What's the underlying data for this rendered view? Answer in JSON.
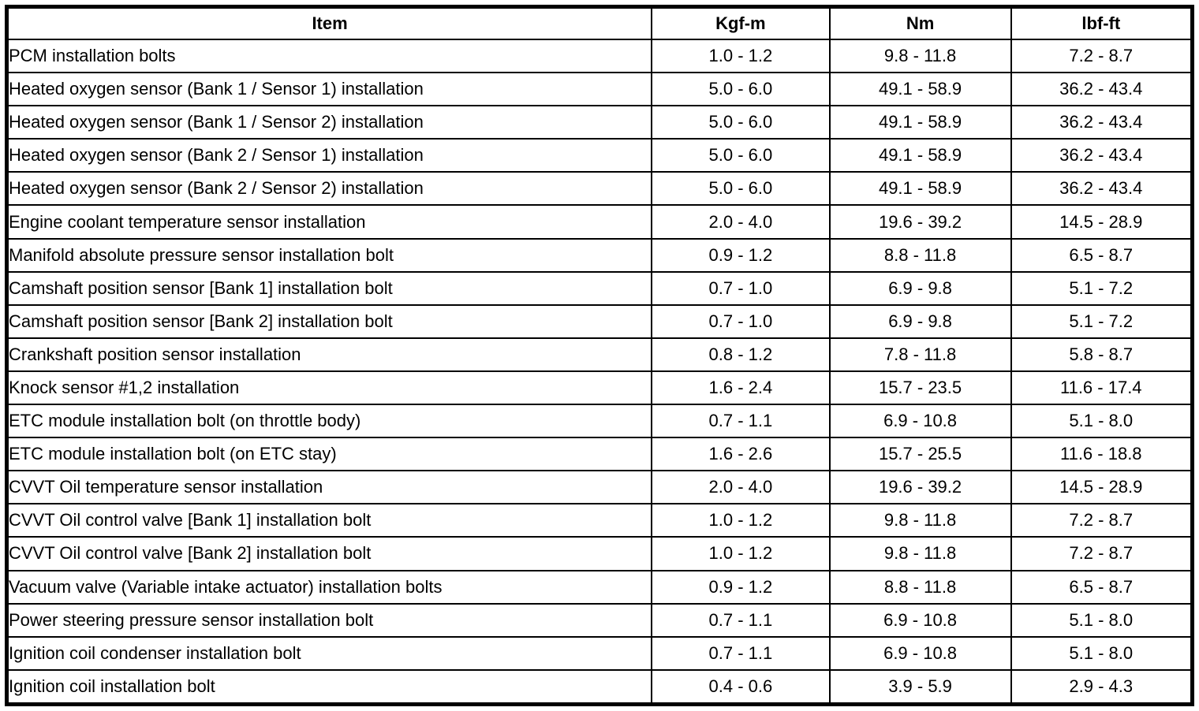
{
  "table": {
    "headers": {
      "item": "Item",
      "kgfm": "Kgf-m",
      "nm": "Nm",
      "lbfft": "lbf-ft"
    },
    "rows": [
      {
        "item": "PCM installation bolts",
        "kgfm": "1.0 - 1.2",
        "nm": "9.8 - 11.8",
        "lbfft": "7.2 - 8.7"
      },
      {
        "item": "Heated oxygen sensor (Bank 1 / Sensor 1) installation",
        "kgfm": "5.0 - 6.0",
        "nm": "49.1 - 58.9",
        "lbfft": "36.2 - 43.4"
      },
      {
        "item": "Heated oxygen sensor (Bank 1 / Sensor 2) installation",
        "kgfm": "5.0 - 6.0",
        "nm": "49.1 - 58.9",
        "lbfft": "36.2 - 43.4"
      },
      {
        "item": "Heated oxygen sensor (Bank 2 / Sensor 1) installation",
        "kgfm": "5.0 - 6.0",
        "nm": "49.1 - 58.9",
        "lbfft": "36.2 - 43.4"
      },
      {
        "item": "Heated oxygen sensor (Bank 2 / Sensor 2) installation",
        "kgfm": "5.0 - 6.0",
        "nm": "49.1 - 58.9",
        "lbfft": "36.2 - 43.4"
      },
      {
        "item": "Engine coolant temperature sensor installation",
        "kgfm": "2.0 - 4.0",
        "nm": "19.6 - 39.2",
        "lbfft": "14.5 - 28.9"
      },
      {
        "item": "Manifold absolute pressure sensor installation bolt",
        "kgfm": "0.9 - 1.2",
        "nm": "8.8 - 11.8",
        "lbfft": "6.5 - 8.7"
      },
      {
        "item": "Camshaft position sensor [Bank 1] installation bolt",
        "kgfm": "0.7 - 1.0",
        "nm": "6.9 - 9.8",
        "lbfft": "5.1 - 7.2"
      },
      {
        "item": "Camshaft position sensor [Bank 2] installation bolt",
        "kgfm": "0.7 - 1.0",
        "nm": "6.9 - 9.8",
        "lbfft": "5.1 - 7.2"
      },
      {
        "item": "Crankshaft position sensor installation",
        "kgfm": "0.8 - 1.2",
        "nm": "7.8 - 11.8",
        "lbfft": "5.8 - 8.7"
      },
      {
        "item": "Knock sensor #1,2 installation",
        "kgfm": "1.6 - 2.4",
        "nm": "15.7 - 23.5",
        "lbfft": "11.6 - 17.4"
      },
      {
        "item": "ETC module installation bolt (on throttle body)",
        "kgfm": "0.7 - 1.1",
        "nm": "6.9 - 10.8",
        "lbfft": "5.1 - 8.0"
      },
      {
        "item": "ETC module installation bolt (on ETC stay)",
        "kgfm": "1.6 - 2.6",
        "nm": "15.7 - 25.5",
        "lbfft": "11.6 - 18.8"
      },
      {
        "item": "CVVT Oil temperature sensor installation",
        "kgfm": "2.0 - 4.0",
        "nm": "19.6 - 39.2",
        "lbfft": "14.5 - 28.9"
      },
      {
        "item": "CVVT Oil control valve [Bank 1] installation bolt",
        "kgfm": "1.0 - 1.2",
        "nm": "9.8 - 11.8",
        "lbfft": "7.2 - 8.7"
      },
      {
        "item": "CVVT Oil control valve [Bank 2] installation bolt",
        "kgfm": "1.0 - 1.2",
        "nm": "9.8 - 11.8",
        "lbfft": "7.2 - 8.7"
      },
      {
        "item": "Vacuum valve (Variable intake actuator) installation bolts",
        "kgfm": "0.9 - 1.2",
        "nm": "8.8 - 11.8",
        "lbfft": "6.5 - 8.7"
      },
      {
        "item": "Power steering pressure sensor installation bolt",
        "kgfm": "0.7 - 1.1",
        "nm": "6.9 - 10.8",
        "lbfft": "5.1 - 8.0"
      },
      {
        "item": "Ignition coil condenser installation bolt",
        "kgfm": "0.7 - 1.1",
        "nm": "6.9 - 10.8",
        "lbfft": "5.1 - 8.0"
      },
      {
        "item": "Ignition coil installation bolt",
        "kgfm": "0.4 - 0.6",
        "nm": "3.9 - 5.9",
        "lbfft": "2.9 - 4.3"
      }
    ]
  }
}
